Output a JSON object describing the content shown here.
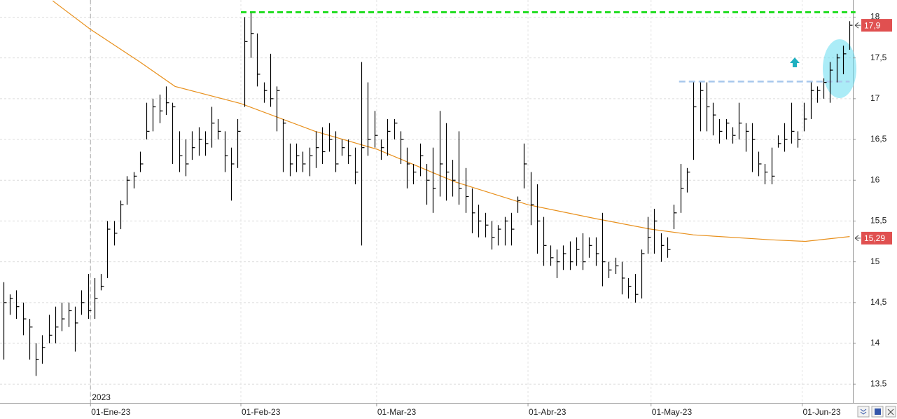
{
  "chart_data": {
    "type": "hlc_bar",
    "xlim": [
      -0.5,
      130.5
    ],
    "ylim": [
      13.27,
      18.21
    ],
    "xticks": [
      {
        "value": 13.4,
        "label": "01-Ene-23"
      },
      {
        "value": 36.5,
        "label": "01-Feb-23"
      },
      {
        "value": 57.35,
        "label": "01-Mar-23"
      },
      {
        "value": 80.6,
        "label": "01-Abr-23"
      },
      {
        "value": 99.5,
        "label": "01-May-23"
      },
      {
        "value": 122.7,
        "label": "01-Jun-23"
      }
    ],
    "yticks": [
      13.5,
      {
        "value": 14,
        "label": "14"
      },
      {
        "value": 14.5,
        "label": "14,5"
      },
      15,
      {
        "value": 15.5,
        "label": "15,5"
      },
      16,
      {
        "value": 16.5,
        "label": "16,5"
      },
      17,
      {
        "value": 17.5,
        "label": "17,5"
      },
      18
    ],
    "year_label": "2023",
    "grid": true,
    "bar_color": "#000000",
    "high": [
      14.75,
      14.6,
      14.65,
      14.5,
      14.3,
      14.0,
      14.1,
      14.35,
      14.45,
      14.5,
      14.5,
      14.45,
      14.65,
      14.85,
      14.8,
      14.85,
      15.5,
      15.5,
      15.75,
      16.05,
      16.1,
      16.35,
      16.95,
      17.0,
      17.05,
      17.15,
      16.95,
      16.6,
      16.5,
      16.6,
      16.65,
      16.6,
      16.9,
      16.75,
      16.6,
      16.4,
      16.75,
      18.0,
      18.05,
      17.8,
      17.2,
      17.55,
      17.15,
      16.75,
      16.45,
      16.45,
      16.35,
      16.4,
      16.6,
      16.65,
      16.7,
      16.6,
      16.5,
      16.5,
      16.4,
      17.45,
      17.2,
      16.85,
      16.5,
      16.75,
      16.75,
      16.6,
      16.4,
      16.2,
      16.45,
      16.2,
      16.4,
      16.85,
      16.7,
      16.25,
      16.6,
      16.15,
      15.9,
      15.7,
      15.6,
      15.5,
      15.45,
      15.55,
      15.6,
      15.8,
      16.45,
      16.1,
      15.95,
      15.55,
      15.2,
      15.15,
      15.2,
      15.25,
      15.3,
      15.35,
      15.3,
      15.3,
      15.6,
      15.0,
      15.05,
      15.0,
      14.8,
      14.85,
      15.15,
      15.55,
      15.65,
      15.35,
      15.3,
      15.7,
      16.2,
      16.15,
      17.2,
      17.2,
      17.2,
      16.95,
      16.75,
      16.75,
      16.65,
      16.95,
      16.7,
      16.7,
      16.35,
      16.2,
      16.4,
      16.55,
      16.7,
      16.95,
      16.6,
      16.95,
      17.2,
      17.15,
      17.25,
      17.45,
      17.55,
      17.65,
      17.95
    ],
    "low": [
      13.8,
      14.35,
      14.3,
      14.1,
      13.8,
      13.6,
      13.75,
      14.0,
      14.0,
      14.15,
      14.2,
      13.9,
      14.35,
      14.3,
      14.3,
      14.65,
      14.8,
      15.2,
      15.4,
      15.7,
      15.9,
      16.1,
      16.5,
      16.6,
      16.7,
      16.8,
      16.2,
      16.1,
      16.05,
      16.25,
      16.3,
      16.3,
      16.4,
      16.5,
      16.1,
      15.75,
      16.15,
      16.9,
      17.5,
      17.15,
      16.95,
      16.9,
      16.6,
      16.1,
      16.05,
      16.1,
      16.1,
      16.05,
      16.15,
      16.2,
      16.35,
      16.1,
      16.3,
      16.2,
      15.95,
      15.2,
      16.3,
      16.4,
      16.25,
      16.3,
      16.5,
      16.2,
      15.9,
      15.95,
      16.05,
      15.7,
      15.6,
      15.8,
      15.75,
      15.8,
      15.7,
      15.6,
      15.35,
      15.3,
      15.3,
      15.15,
      15.2,
      15.2,
      15.2,
      15.6,
      15.9,
      15.45,
      15.1,
      14.95,
      14.95,
      14.8,
      14.9,
      14.9,
      14.95,
      14.9,
      15.05,
      14.95,
      14.7,
      14.8,
      14.85,
      14.6,
      14.55,
      14.5,
      14.55,
      15.1,
      15.1,
      15.0,
      15.05,
      15.4,
      15.6,
      15.85,
      16.25,
      16.6,
      16.6,
      16.55,
      16.45,
      16.5,
      16.45,
      16.5,
      16.35,
      16.1,
      16.05,
      15.95,
      15.95,
      16.4,
      16.35,
      16.45,
      16.4,
      16.6,
      16.75,
      16.95,
      17.0,
      16.95,
      17.2,
      17.3,
      17.6
    ],
    "close": [
      14.5,
      14.55,
      14.45,
      14.3,
      14.2,
      13.8,
      13.95,
      14.1,
      14.2,
      14.3,
      14.4,
      14.25,
      14.5,
      14.4,
      14.55,
      14.7,
      15.4,
      15.35,
      15.7,
      16.0,
      16.05,
      16.2,
      16.6,
      16.9,
      16.85,
      16.95,
      16.9,
      16.3,
      16.2,
      16.4,
      16.5,
      16.45,
      16.7,
      16.6,
      16.3,
      16.2,
      16.6,
      17.7,
      17.8,
      17.3,
      17.1,
      17.0,
      17.1,
      16.7,
      16.2,
      16.3,
      16.2,
      16.3,
      16.4,
      16.35,
      16.5,
      16.2,
      16.4,
      16.3,
      16.1,
      16.4,
      16.5,
      16.55,
      16.4,
      16.6,
      16.7,
      16.5,
      16.2,
      16.1,
      16.3,
      16.0,
      15.9,
      16.2,
      16.1,
      16.0,
      15.9,
      15.8,
      15.6,
      15.5,
      15.45,
      15.3,
      15.4,
      15.5,
      15.4,
      15.75,
      16.2,
      15.7,
      15.5,
      15.2,
      15.05,
      15.0,
      15.1,
      15.0,
      15.15,
      15.0,
      15.2,
      15.1,
      15.0,
      14.9,
      14.95,
      14.8,
      14.7,
      14.6,
      15.1,
      15.3,
      15.5,
      15.2,
      15.15,
      15.6,
      15.9,
      16.1,
      16.9,
      17.1,
      16.9,
      16.8,
      16.6,
      16.7,
      16.55,
      16.7,
      16.6,
      16.5,
      16.2,
      16.1,
      16.05,
      16.45,
      16.5,
      16.6,
      16.5,
      16.75,
      17.1,
      17.1,
      17.2,
      17.35,
      17.5,
      17.55,
      17.9
    ],
    "ma": {
      "color": "#e8901c",
      "x": [
        7.6,
        13.4,
        21,
        26.4,
        36.5,
        47.9,
        57.4,
        69.4,
        80.6,
        90.9,
        99.5,
        106,
        117.8,
        123.2,
        130
      ],
      "values": [
        18.2,
        17.85,
        17.45,
        17.15,
        16.94,
        16.6,
        16.38,
        15.98,
        15.7,
        15.53,
        15.4,
        15.33,
        15.27,
        15.25,
        15.31
      ]
    },
    "levels": [
      {
        "value": 18.06,
        "from": 36.5,
        "to": 130.9,
        "color": "#22dd22"
      },
      {
        "value": 17.21,
        "from": 103.8,
        "to": 130,
        "color": "#a8c8ec"
      }
    ],
    "last_price_label": {
      "value": 17.9,
      "label": "17,9"
    },
    "ma_label": {
      "value": 15.29,
      "label": "15,29"
    }
  }
}
